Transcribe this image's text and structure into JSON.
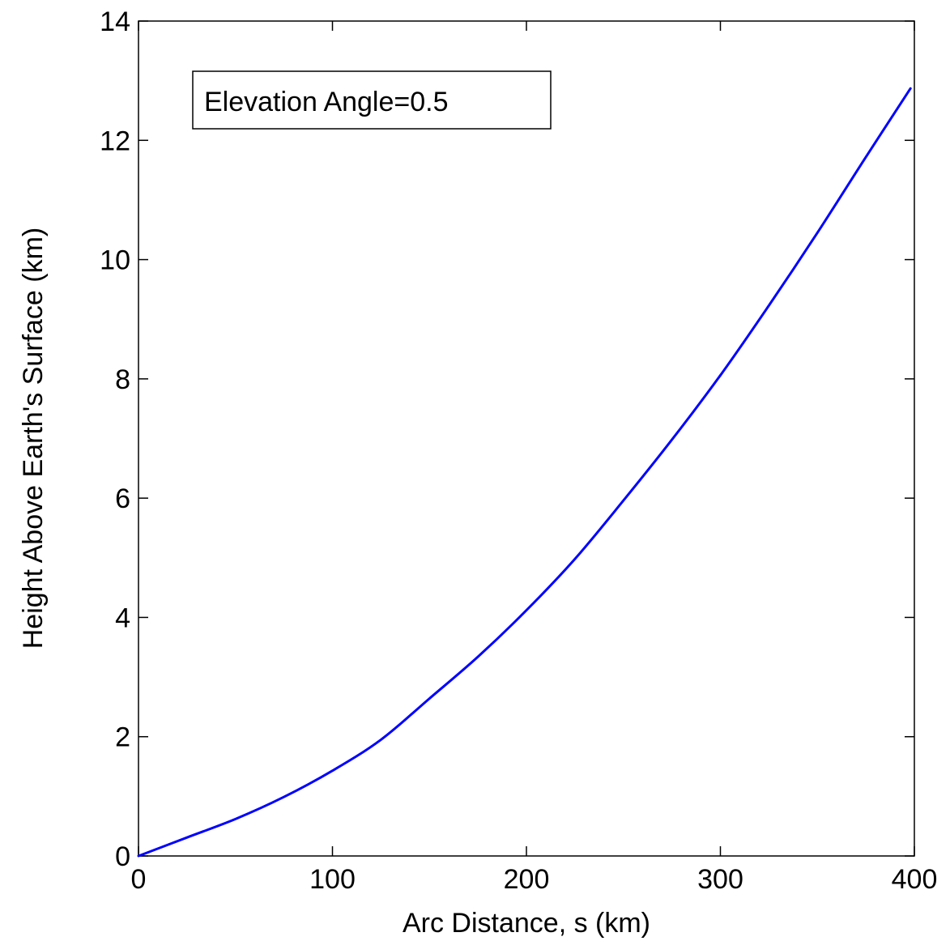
{
  "chart_data": {
    "type": "line",
    "title": "",
    "xlabel": "Arc Distance, s (km)",
    "ylabel": "Height Above Earth's Surface (km)",
    "xlim": [
      0,
      400
    ],
    "ylim": [
      0,
      14
    ],
    "xticks": [
      0,
      100,
      200,
      300,
      400
    ],
    "yticks": [
      0,
      2,
      4,
      6,
      8,
      10,
      12,
      14
    ],
    "xtick_labels": [
      "0",
      "100",
      "200",
      "300",
      "400"
    ],
    "ytick_labels": [
      "0",
      "2",
      "4",
      "6",
      "8",
      "10",
      "12",
      "14"
    ],
    "grid": false,
    "legend": {
      "placement": "top-left",
      "entries": [
        "Elevation Angle=0.5"
      ]
    },
    "series": [
      {
        "color": "#0000ff",
        "x": [
          0,
          25,
          50,
          75,
          100,
          125,
          150,
          175,
          200,
          225,
          250,
          275,
          300,
          325,
          350,
          375,
          398
        ],
        "y": [
          0,
          0.31,
          0.62,
          0.99,
          1.43,
          1.95,
          2.64,
          3.34,
          4.12,
          4.98,
          5.96,
          6.98,
          8.06,
          9.23,
          10.45,
          11.72,
          12.87
        ]
      }
    ]
  }
}
